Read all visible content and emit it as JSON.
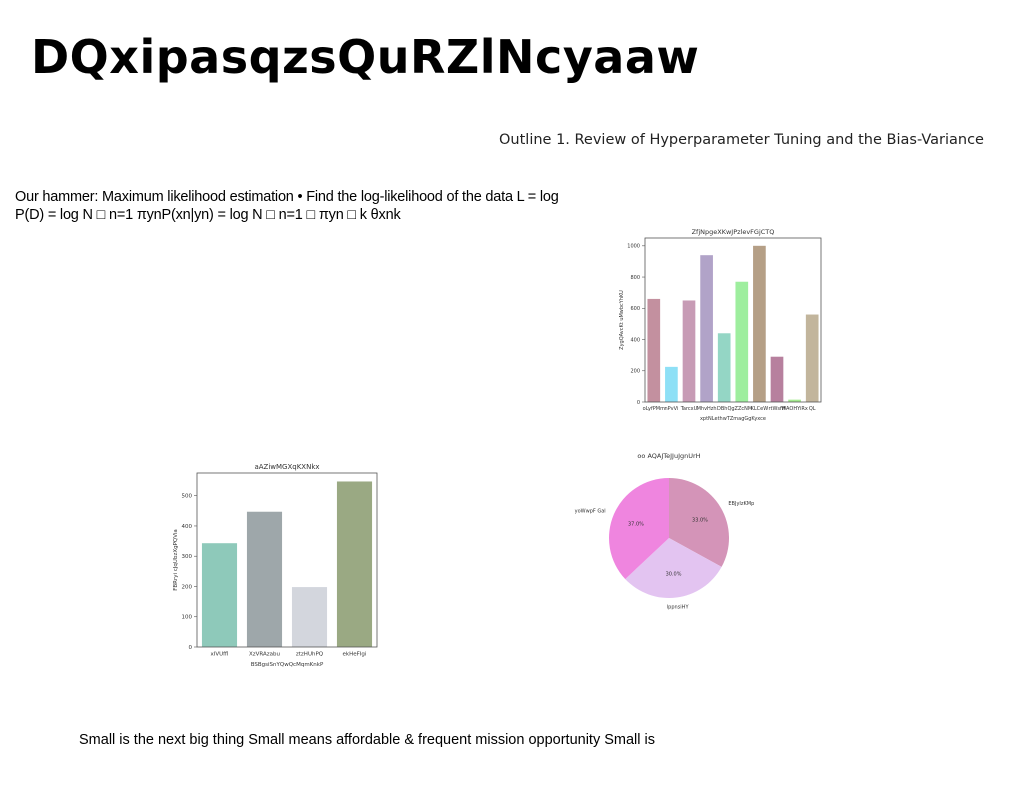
{
  "title": "DQxipasqzsQuRZlNcyaaw",
  "outline_text": "Outline 1. Review of Hyperparameter Tuning and the Bias-Variance",
  "hammer_text": "Our hammer: Maximum likelihood estimation • Find the log-likelihood of the data L = log P(D) = log N □ n=1 πynP(xn|yn) = log N □ n=1 □ πyn □ k θxnk",
  "small_text": "Small is the next big thing Small means affordable & frequent mission opportunity Small is",
  "chart_data": [
    {
      "type": "bar",
      "title": "ZfjNpgeXKwJPzlevFGjCTQ",
      "xlabel": "xptNLethwTZmagGgKyxce",
      "ylabel": "ZygQAvcKt uMwbcYhKU",
      "categories": [
        "oLyfPMm",
        "nPvVi",
        "TarcxU",
        "MhvHzh",
        "DBhQ",
        "gZZcNM",
        "KLCeW",
        "rtWsfH",
        "WAOHYiRx",
        "QL"
      ],
      "values": [
        660,
        225,
        650,
        940,
        440,
        770,
        1000,
        290,
        15,
        560
      ],
      "colors": [
        "#c3909f",
        "#8ee0f6",
        "#c79bb5",
        "#b1a3c8",
        "#94d6c5",
        "#9eee9e",
        "#b59f86",
        "#b7809e",
        "#a5eb90",
        "#c2b59c"
      ],
      "yticks": [
        0,
        200,
        400,
        600,
        800,
        1000
      ],
      "ylim": [
        0,
        1050
      ]
    },
    {
      "type": "bar",
      "title": "aAZiwMGXqKXNkx",
      "xlabel": "BSBgsiSnYQwQcMqmKnkP",
      "ylabel": "FBRryi cJqUbzXgPQVia",
      "categories": [
        "xIVUffl",
        "XzVRAzabu",
        "ztzHUhPQ",
        "ekHeFIgi"
      ],
      "values": [
        343,
        447,
        198,
        547
      ],
      "colors": [
        "#8ec9ba",
        "#9ea7aa",
        "#d3d6dd",
        "#9aa983"
      ],
      "yticks": [
        0,
        100,
        200,
        300,
        400,
        500
      ],
      "ylim": [
        0,
        575
      ]
    },
    {
      "type": "pie",
      "title": "oo AQAJTeJJuJgnUrH",
      "labels": [
        "EBJyIzKMp",
        "lppnsiHY",
        "yoWwpF Gal"
      ],
      "values": [
        33.0,
        30.0,
        37.0
      ],
      "pct_labels": [
        "33.0%",
        "30.0%",
        "37.0%"
      ],
      "colors": [
        "#d494b8",
        "#e3c4f1",
        "#ef85df"
      ]
    }
  ]
}
